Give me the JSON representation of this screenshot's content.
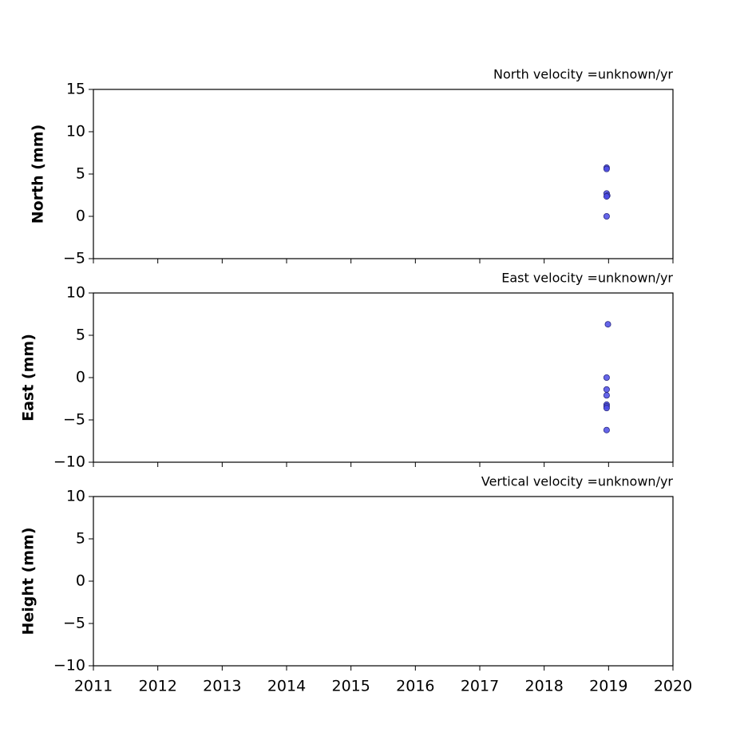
{
  "chart_data": [
    {
      "type": "scatter",
      "title": "North velocity =unknown/yr",
      "y_label": "North (mm)",
      "color": "#4b4be6",
      "edge_color": "#2a2a80",
      "x": [
        2018.97,
        2018.97,
        2018.97,
        2018.98,
        2018.97,
        2018.97
      ],
      "values": [
        5.75,
        5.6,
        2.7,
        2.45,
        2.35,
        0
      ],
      "xlim": [
        2011,
        2020
      ],
      "xticks": [
        2011,
        2012,
        2013,
        2014,
        2015,
        2016,
        2017,
        2018,
        2019,
        2020
      ],
      "show_xtick_labels": false,
      "ylim": [
        -5,
        15
      ],
      "yticks": [
        {
          "value": -5,
          "label": "−5"
        },
        0,
        5,
        10,
        15
      ]
    },
    {
      "type": "scatter",
      "title": "East velocity =unknown/yr",
      "y_label": "East (mm)",
      "color": "#4b4be6",
      "edge_color": "#2a2a80",
      "x": [
        2018.99,
        2018.97,
        2018.97,
        2018.97,
        2018.97,
        2018.97,
        2018.97,
        2018.97
      ],
      "values": [
        6.3,
        0,
        -1.4,
        -2.1,
        -3.2,
        -3.4,
        -3.6,
        -6.2
      ],
      "xlim": [
        2011,
        2020
      ],
      "xticks": [
        2011,
        2012,
        2013,
        2014,
        2015,
        2016,
        2017,
        2018,
        2019,
        2020
      ],
      "show_xtick_labels": false,
      "ylim": [
        -10,
        10
      ],
      "yticks": [
        {
          "value": -10,
          "label": "−10"
        },
        {
          "value": -5,
          "label": "−5"
        },
        0,
        5,
        10
      ]
    },
    {
      "type": "scatter",
      "title": "Vertical velocity =unknown/yr",
      "y_label": "Height (mm)",
      "color": "#4b4be6",
      "edge_color": "#2a2a80",
      "x": [],
      "values": [],
      "xlim": [
        2011,
        2020
      ],
      "xticks": [
        2011,
        2012,
        2013,
        2014,
        2015,
        2016,
        2017,
        2018,
        2019,
        2020
      ],
      "show_xtick_labels": true,
      "ylim": [
        -10,
        10
      ],
      "yticks": [
        {
          "value": -10,
          "label": "−10"
        },
        {
          "value": -5,
          "label": "−5"
        },
        0,
        5,
        10
      ]
    }
  ]
}
